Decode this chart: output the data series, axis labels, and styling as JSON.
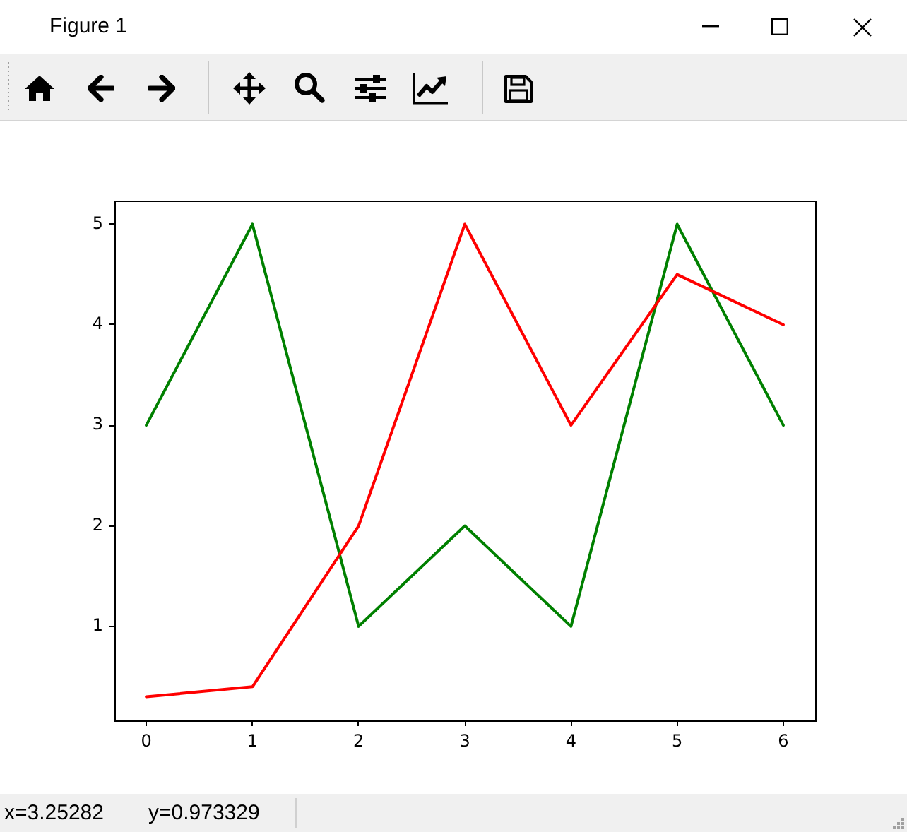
{
  "chart_data": {
    "type": "line",
    "title": "Figure 1",
    "annotations": [
      "x=3.25282",
      "y=0.973329"
    ],
    "x": [
      0,
      1,
      2,
      3,
      4,
      5,
      6
    ],
    "series": [
      {
        "color": "#ff0000",
        "values": [
          0.3,
          0.4,
          2,
          5,
          3,
          4.5,
          4
        ]
      },
      {
        "color": "#008000",
        "values": [
          3,
          5,
          1,
          2,
          1,
          5,
          3
        ]
      }
    ],
    "xlim": [
      -0.3,
      6.3
    ],
    "ylim": [
      0.065,
      5.235
    ],
    "xticks": [
      0,
      1,
      2,
      3,
      4,
      5,
      6
    ],
    "yticks": [
      1,
      2,
      3,
      4,
      5
    ],
    "grid": false,
    "legend": false,
    "marker": "none",
    "line_style": "solid"
  }
}
